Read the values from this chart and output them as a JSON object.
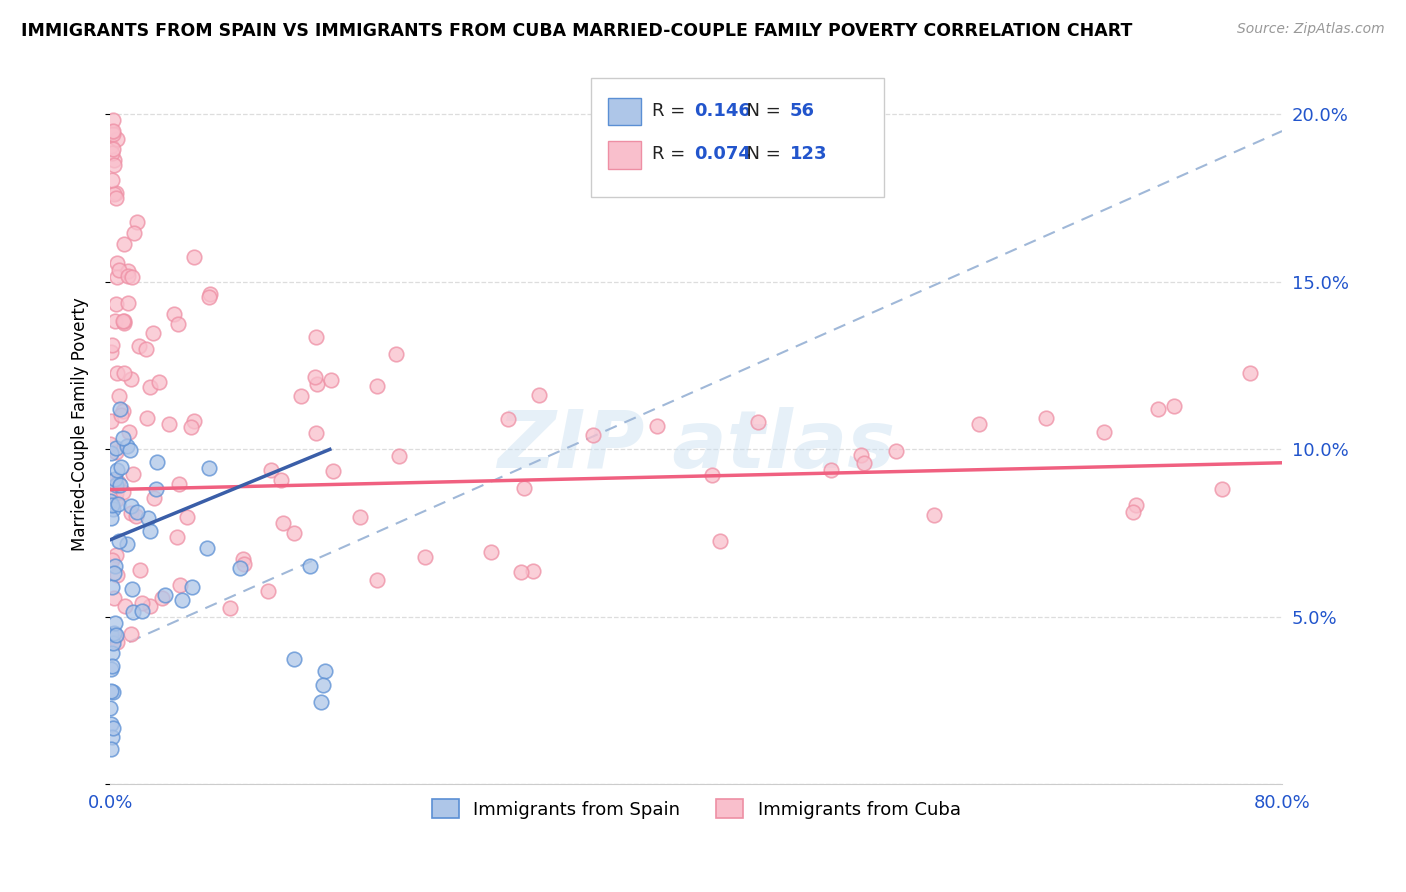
{
  "title": "IMMIGRANTS FROM SPAIN VS IMMIGRANTS FROM CUBA MARRIED-COUPLE FAMILY POVERTY CORRELATION CHART",
  "source": "Source: ZipAtlas.com",
  "ylabel": "Married-Couple Family Poverty",
  "y_ticks": [
    0.0,
    0.05,
    0.1,
    0.15,
    0.2
  ],
  "y_tick_labels_right": [
    "",
    "5.0%",
    "10.0%",
    "15.0%",
    "20.0%"
  ],
  "x_lim": [
    0.0,
    0.8
  ],
  "y_lim": [
    0.0,
    0.215
  ],
  "legend1_label": "Immigrants from Spain",
  "legend2_label": "Immigrants from Cuba",
  "r1": "0.146",
  "n1": "56",
  "r2": "0.074",
  "n2": "123",
  "color_spain_fill": "#aec6e8",
  "color_spain_edge": "#5b8fd4",
  "color_cuba_fill": "#f9bfcc",
  "color_cuba_edge": "#ee8fa4",
  "color_spain_line": "#3a5ea8",
  "color_cuba_line": "#f06080",
  "color_dashed": "#a0b8d8",
  "color_r_n_values": "#2255cc",
  "color_r_n_label": "#222222",
  "grid_color": "#dddddd",
  "spain_line_x0": 0.0,
  "spain_line_y0": 0.073,
  "spain_line_x1": 0.15,
  "spain_line_y1": 0.1,
  "cuba_line_x0": 0.0,
  "cuba_line_y0": 0.088,
  "cuba_line_x1": 0.8,
  "cuba_line_y1": 0.096,
  "dashed_line_x0": 0.0,
  "dashed_line_y0": 0.04,
  "dashed_line_x1": 0.8,
  "dashed_line_y1": 0.195
}
